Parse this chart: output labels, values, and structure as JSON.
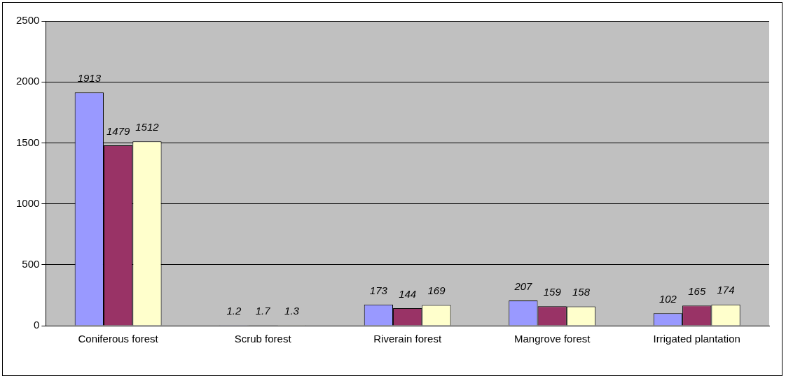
{
  "chart_data": {
    "type": "bar",
    "categories": [
      "Coniferous forest",
      "Scrub forest",
      "Riverain forest",
      "Mangrove forest",
      "Irrigated plantation"
    ],
    "series": [
      {
        "color": "#9999ff",
        "values": [
          1913,
          1.2,
          173,
          207,
          102
        ]
      },
      {
        "color": "#993366",
        "values": [
          1479,
          1.7,
          144,
          159,
          165
        ]
      },
      {
        "color": "#ffffcc",
        "values": [
          1512,
          1.3,
          169,
          158,
          174
        ]
      }
    ],
    "ylim": [
      0,
      2500
    ],
    "yticks": [
      0,
      500,
      1000,
      1500,
      2000,
      2500
    ],
    "grid": "y",
    "legend": false,
    "data_labels": true
  }
}
